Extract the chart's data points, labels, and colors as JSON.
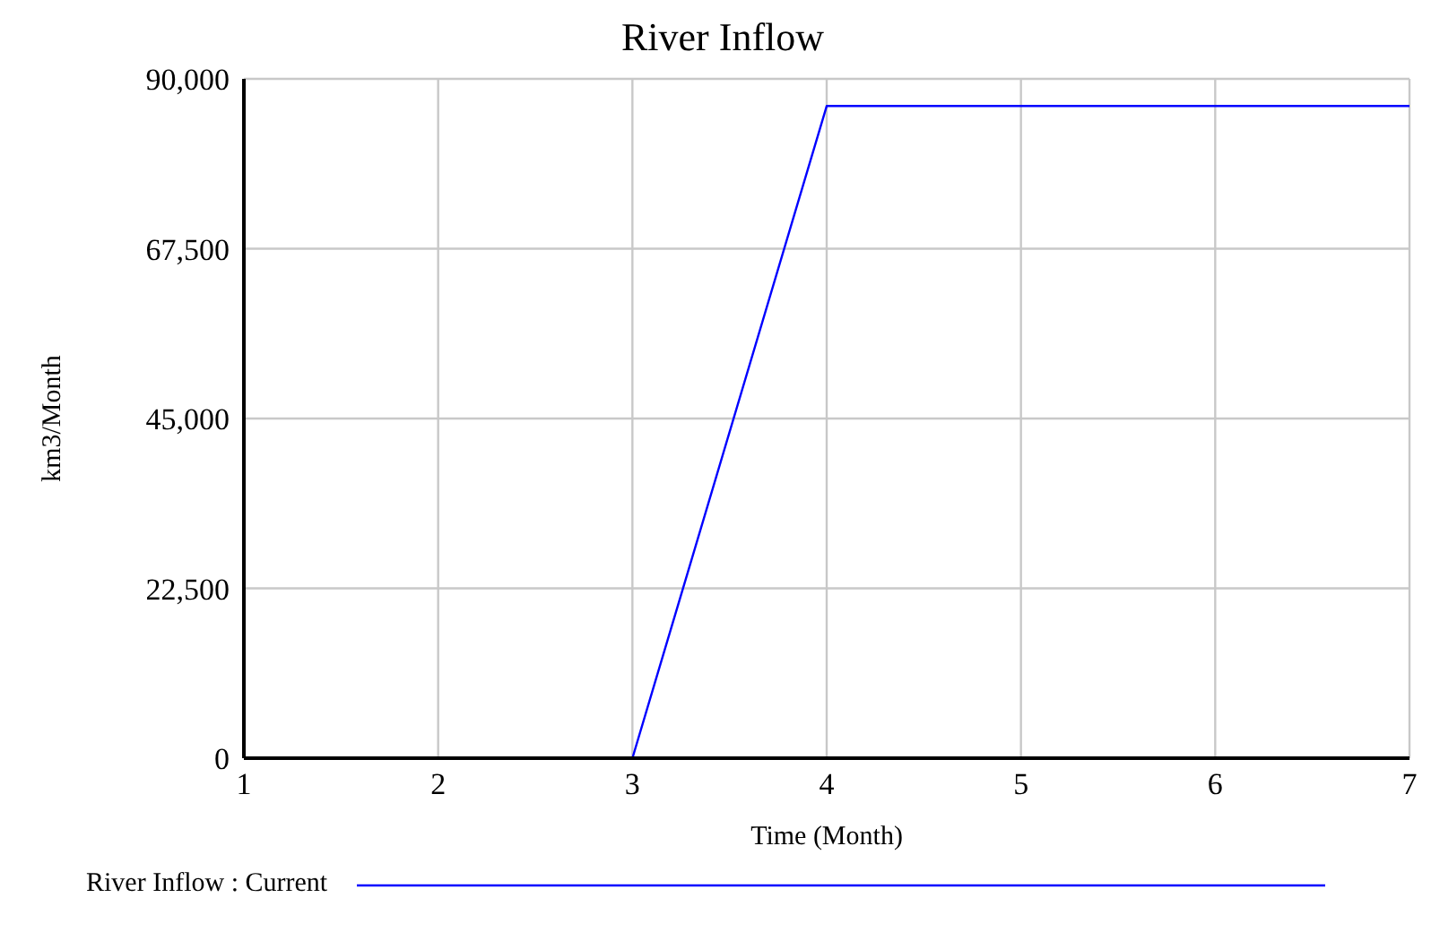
{
  "chart_data": {
    "type": "line",
    "title": "River Inflow",
    "xlabel": "Time (Month)",
    "ylabel": "km3/Month",
    "x": [
      1,
      2,
      3,
      4,
      5,
      6,
      7
    ],
    "series": [
      {
        "name": "River Inflow : Current",
        "color": "#0000ff",
        "values": [
          0,
          0,
          0,
          86400,
          86400,
          86400,
          86400
        ]
      }
    ],
    "xlim": [
      1,
      7
    ],
    "xticks": [
      1,
      2,
      3,
      4,
      5,
      6,
      7
    ],
    "ylim": [
      0,
      90000
    ],
    "yticks": [
      0,
      {
        "value": 22500,
        "label": "22,500"
      },
      {
        "value": 45000,
        "label": "45,000"
      },
      {
        "value": 67500,
        "label": "67,500"
      },
      {
        "value": 90000,
        "label": "90,000"
      }
    ],
    "grid": true,
    "legend": "bottom",
    "marker": "none",
    "line_style": "solid"
  }
}
